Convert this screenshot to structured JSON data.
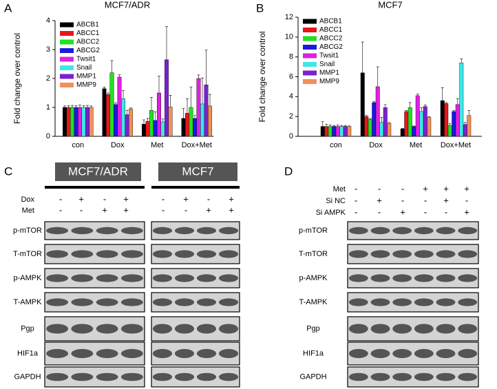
{
  "letters": [
    "A",
    "B",
    "C",
    "D"
  ],
  "chart_data": [
    {
      "type": "bar",
      "title": "MCF7/ADR",
      "y_label": "Fold change over control",
      "categories": [
        "con",
        "Dox",
        "Met",
        "Dox+Met"
      ],
      "ylim": [
        0,
        4
      ],
      "yticks": [
        0,
        1,
        2,
        3,
        4
      ],
      "grid": false,
      "legend": "upper-left",
      "series": [
        {
          "name": "ABCB1",
          "color": "#000000",
          "values": [
            1.0,
            1.65,
            0.42,
            0.62
          ],
          "errors": [
            0.05,
            0.05,
            0.15,
            0.35
          ]
        },
        {
          "name": "ABCC1",
          "color": "#e8161b",
          "values": [
            1.0,
            1.45,
            0.52,
            0.8
          ],
          "errors": [
            0.06,
            0.05,
            0.1,
            0.5
          ]
        },
        {
          "name": "ABCC2",
          "color": "#22e022",
          "values": [
            1.0,
            2.2,
            0.9,
            1.0
          ],
          "errors": [
            0.07,
            0.42,
            0.45,
            0.7
          ]
        },
        {
          "name": "ABCG2",
          "color": "#1a1ae0",
          "values": [
            1.0,
            1.1,
            0.55,
            0.62
          ],
          "errors": [
            0.06,
            0.05,
            0.3,
            0.1
          ]
        },
        {
          "name": "Twsit1",
          "color": "#e020e0",
          "values": [
            1.0,
            2.05,
            1.5,
            2.0
          ],
          "errors": [
            0.08,
            0.08,
            0.58,
            0.12
          ]
        },
        {
          "name": "Snail",
          "color": "#3ee8e8",
          "values": [
            1.0,
            1.3,
            0.5,
            1.12
          ],
          "errors": [
            0.06,
            0.28,
            0.1,
            0.9
          ]
        },
        {
          "name": "MMP1",
          "color": "#7a22d0",
          "values": [
            1.0,
            0.75,
            2.65,
            1.78
          ],
          "errors": [
            0.07,
            0.15,
            1.15,
            1.2
          ]
        },
        {
          "name": "MMP9",
          "color": "#f0905a",
          "values": [
            1.0,
            0.95,
            1.02,
            1.05
          ],
          "errors": [
            0.05,
            0.03,
            0.4,
            0.4
          ]
        }
      ]
    },
    {
      "type": "bar",
      "title": "MCF7",
      "y_label": "Fold change over control",
      "categories": [
        "con",
        "Dox",
        "Met",
        "Dox+Met"
      ],
      "ylim": [
        0,
        12
      ],
      "yticks": [
        0,
        2,
        4,
        6,
        8,
        10,
        12
      ],
      "grid": false,
      "legend": "upper-left",
      "series": [
        {
          "name": "ABCB1",
          "color": "#000000",
          "values": [
            1.0,
            6.4,
            0.75,
            3.6
          ],
          "errors": [
            0.5,
            3.1,
            0.05,
            1.3
          ]
        },
        {
          "name": "ABCC1",
          "color": "#e8161b",
          "values": [
            1.0,
            2.0,
            2.5,
            3.3
          ],
          "errors": [
            0.2,
            0.1,
            0.1,
            0.1
          ]
        },
        {
          "name": "ABCC2",
          "color": "#22e022",
          "values": [
            1.0,
            1.7,
            2.9,
            1.1
          ],
          "errors": [
            0.15,
            0.1,
            0.5,
            0.2
          ]
        },
        {
          "name": "ABCG2",
          "color": "#1a1ae0",
          "values": [
            1.0,
            3.4,
            1.0,
            2.5
          ],
          "errors": [
            0.1,
            0.1,
            0.05,
            0.1
          ]
        },
        {
          "name": "Twsit1",
          "color": "#e020e0",
          "values": [
            1.0,
            5.0,
            4.1,
            3.2
          ],
          "errors": [
            0.15,
            2.0,
            0.15,
            0.6
          ]
        },
        {
          "name": "Snail",
          "color": "#3ee8e8",
          "values": [
            1.0,
            1.4,
            2.5,
            7.4
          ],
          "errors": [
            0.1,
            0.5,
            0.4,
            0.4
          ]
        },
        {
          "name": "MMP1",
          "color": "#7a22d0",
          "values": [
            1.0,
            2.9,
            3.0,
            1.2
          ],
          "errors": [
            0.1,
            0.3,
            0.15,
            0.2
          ]
        },
        {
          "name": "MMP9",
          "color": "#f0905a",
          "values": [
            1.0,
            1.3,
            1.9,
            2.1
          ],
          "errors": [
            0.05,
            0.1,
            0.1,
            0.5
          ]
        }
      ]
    }
  ],
  "blot_c": {
    "cell_lines": [
      "MCF7/ADR",
      "MCF7"
    ],
    "treatments": [
      {
        "name": "Dox",
        "signs": [
          "-",
          "+",
          "-",
          "+"
        ]
      },
      {
        "name": "Met",
        "signs": [
          "-",
          "-",
          "+",
          "+"
        ]
      }
    ],
    "blots": [
      "p-mTOR",
      "T-mTOR",
      "p-AMPK",
      "T-AMPK",
      "Pgp",
      "HIF1a",
      "GAPDH"
    ]
  },
  "blot_d": {
    "treatments": [
      {
        "name": "Met",
        "signs": [
          "-",
          "-",
          "-",
          "+",
          "+",
          "+"
        ]
      },
      {
        "name": "Si NC",
        "signs": [
          "-",
          "+",
          "-",
          "-",
          "+",
          "-"
        ]
      },
      {
        "name": "Si AMPK",
        "signs": [
          "-",
          "-",
          "+",
          "-",
          "-",
          "+"
        ]
      }
    ],
    "blots": [
      "p-mTOR",
      "T-mTOR",
      "p-AMPK",
      "T-AMPK",
      "Pgp",
      "HIF1a",
      "GAPDH"
    ]
  }
}
